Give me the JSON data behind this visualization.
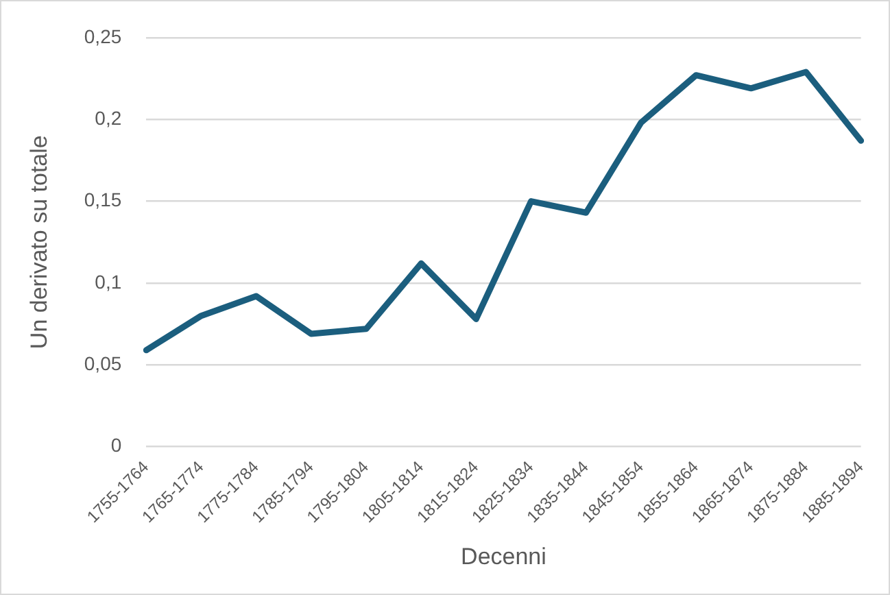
{
  "chart_data": {
    "type": "line",
    "xlabel": "Decenni",
    "ylabel": "Un derivato su totale",
    "categories": [
      "1755-1764",
      "1765-1774",
      "1775-1784",
      "1785-1794",
      "1795-1804",
      "1805-1814",
      "1815-1824",
      "1825-1834",
      "1835-1844",
      "1845-1854",
      "1855-1864",
      "1865-1874",
      "1875-1884",
      "1885-1894"
    ],
    "series": [
      {
        "color": "#1b5e7e",
        "values": [
          0.059,
          0.08,
          0.092,
          0.069,
          0.072,
          0.112,
          0.078,
          0.15,
          0.143,
          0.198,
          0.227,
          0.219,
          0.229,
          0.187
        ]
      }
    ],
    "ylim": [
      0,
      0.25
    ],
    "yticks": [
      0,
      {
        "value": 0.05,
        "label": "0,05"
      },
      {
        "value": 0.1,
        "label": "0,1"
      },
      {
        "value": 0.15,
        "label": "0,15"
      },
      {
        "value": 0.2,
        "label": "0,2"
      },
      {
        "value": 0.25,
        "label": "0,25"
      }
    ],
    "grid": "y",
    "legend": false,
    "marker": "none",
    "line_style": "solid"
  }
}
